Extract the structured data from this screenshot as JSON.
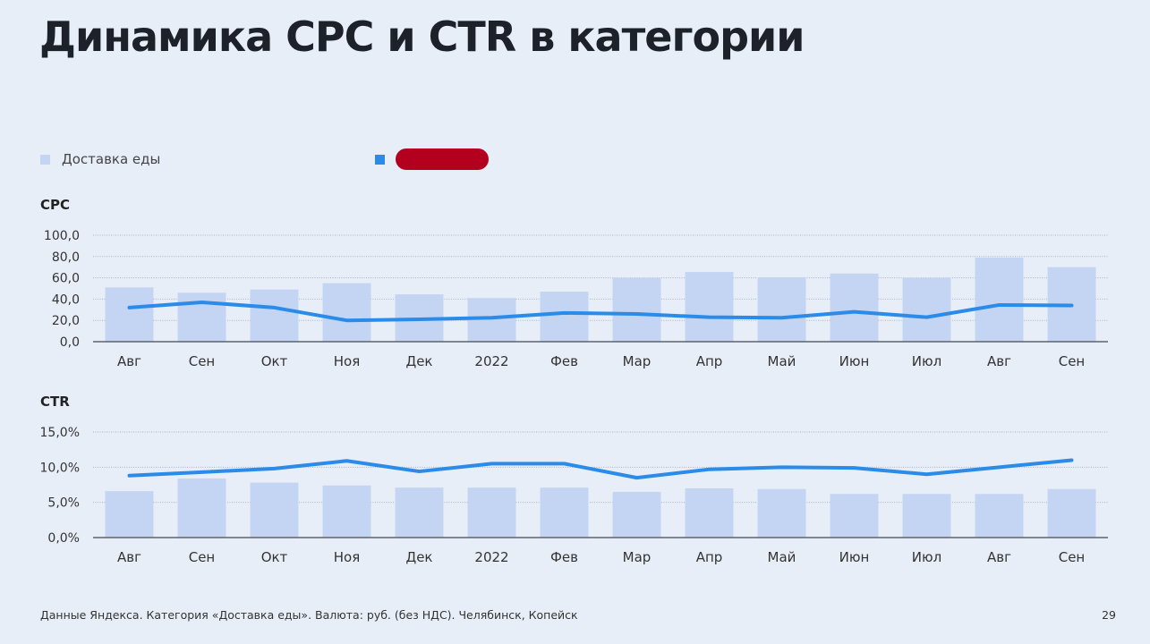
{
  "title": "Динамика CPC и CTR в категории",
  "legend": [
    {
      "label": "Доставка еды",
      "color": "#c4d5f3"
    },
    {
      "label": "",
      "color": "#2b8be8",
      "redacted": true,
      "redact_color": "#b4001f"
    }
  ],
  "chart_data": [
    {
      "type": "bar+line",
      "title": "CPC",
      "categories": [
        "Авг",
        "Сен",
        "Окт",
        "Ноя",
        "Дек",
        "2022",
        "Фев",
        "Мар",
        "Апр",
        "Май",
        "Июн",
        "Июл",
        "Авг",
        "Сен"
      ],
      "yticks": [
        "0,0",
        "20,0",
        "40,0",
        "60,0",
        "80,0",
        "100,0"
      ],
      "ylim": [
        0,
        100
      ],
      "series": [
        {
          "name": "Доставка еды",
          "type": "bar",
          "values": [
            51,
            46,
            49,
            55,
            44.5,
            41,
            47,
            60,
            65.5,
            60.5,
            64,
            60,
            79,
            70
          ]
        },
        {
          "name": "(redacted)",
          "type": "line",
          "values": [
            32,
            37,
            32,
            20,
            21,
            22.5,
            27,
            26,
            23,
            22.5,
            28,
            23,
            34.5,
            34
          ]
        }
      ]
    },
    {
      "type": "bar+line",
      "title": "CTR",
      "categories": [
        "Авг",
        "Сен",
        "Окт",
        "Ноя",
        "Дек",
        "2022",
        "Фев",
        "Мар",
        "Апр",
        "Май",
        "Июн",
        "Июл",
        "Авг",
        "Сен"
      ],
      "yticks": [
        "0,0%",
        "5,0%",
        "10,0%",
        "15,0%"
      ],
      "ylim": [
        0,
        15
      ],
      "series": [
        {
          "name": "Доставка еды",
          "type": "bar",
          "values": [
            6.6,
            8.4,
            7.8,
            7.4,
            7.1,
            7.1,
            7.1,
            6.5,
            7.0,
            6.9,
            6.2,
            6.2,
            6.2,
            6.9
          ]
        },
        {
          "name": "(redacted)",
          "type": "line",
          "values": [
            8.8,
            9.3,
            9.8,
            10.9,
            9.4,
            10.5,
            10.5,
            8.5,
            9.7,
            10.0,
            9.9,
            9.0,
            10.0,
            11.0
          ]
        }
      ]
    }
  ],
  "footer": "Данные Яндекса. Категория «Доставка еды». Валюта: руб. (без НДС). Челябинск, Копейск",
  "page_number": "29"
}
